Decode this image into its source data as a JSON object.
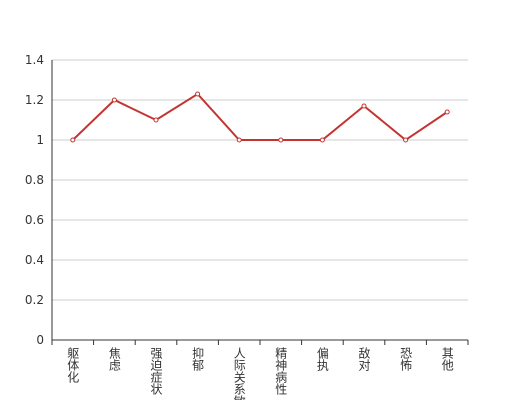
{
  "chart_data": {
    "type": "line",
    "categories": [
      "躯体化",
      "焦虑",
      "强迫症状",
      "抑郁",
      "人际关系敏感",
      "精神病性",
      "偏执",
      "敌对",
      "恐怖",
      "其他"
    ],
    "values": [
      1,
      1.2,
      1.1,
      1.23,
      1,
      1,
      1,
      1.17,
      1,
      1.14
    ],
    "color": "#c23531",
    "ylim": [
      0,
      1.4
    ],
    "yticks": [
      0,
      0.2,
      0.4,
      0.6,
      0.8,
      1,
      1.2,
      1.4
    ],
    "grid": true
  }
}
